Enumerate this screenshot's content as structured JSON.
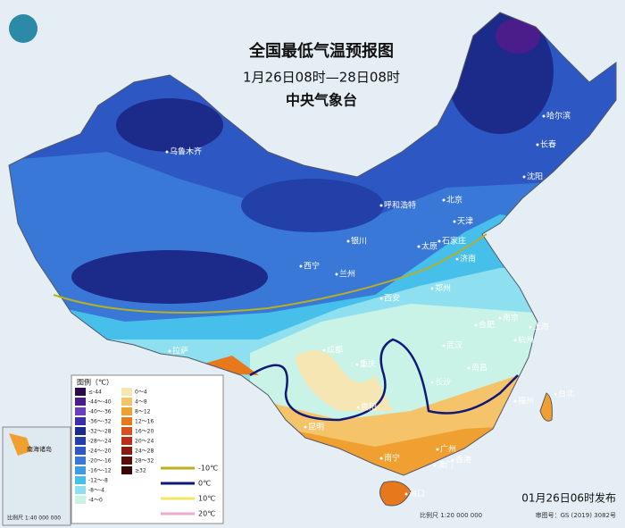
{
  "header": {
    "title": "全国最低气温预报图",
    "subtitle": "1月26日08时—28日08时",
    "agency": "中央气象台"
  },
  "cities": [
    "乌鲁木齐",
    "哈尔滨",
    "长春",
    "沈阳",
    "呼和浩特",
    "北京",
    "天津",
    "银川",
    "石家庄",
    "太原",
    "济南",
    "西宁",
    "兰州",
    "西安",
    "郑州",
    "拉萨",
    "成都",
    "重庆",
    "武汉",
    "合肥",
    "南京",
    "上海",
    "杭州",
    "南昌",
    "长沙",
    "贵阳",
    "福州",
    "台北",
    "昆明",
    "广州",
    "南宁",
    "澳门",
    "香港",
    "海口"
  ],
  "legend": {
    "title": "图例（℃）",
    "items": [
      {
        "label": "≤-44",
        "color": "#2a0a4a"
      },
      {
        "label": "-44～-40",
        "color": "#4b1d8a"
      },
      {
        "label": "-40～-36",
        "color": "#6a3fc0"
      },
      {
        "label": "-36～-32",
        "color": "#3b2fa8"
      },
      {
        "label": "-32～-28",
        "color": "#1c2a8a"
      },
      {
        "label": "-28～-24",
        "color": "#233fa8"
      },
      {
        "label": "-24～-20",
        "color": "#2d58c4"
      },
      {
        "label": "-20～-16",
        "color": "#3a78d8"
      },
      {
        "label": "-16～-12",
        "color": "#3d9be0"
      },
      {
        "label": "-12～-8",
        "color": "#46c0ea"
      },
      {
        "label": "-8～-4",
        "color": "#8ee0f0"
      },
      {
        "label": "-4～0",
        "color": "#c8f3e6"
      },
      {
        "label": "0～4",
        "color": "#f5e6b4"
      },
      {
        "label": "4～8",
        "color": "#f5c46a"
      },
      {
        "label": "8～12",
        "color": "#f0a030"
      },
      {
        "label": "12～16",
        "color": "#e8781c"
      },
      {
        "label": "16～20",
        "color": "#d8501a"
      },
      {
        "label": "20～24",
        "color": "#b8301a"
      },
      {
        "label": "24～28",
        "color": "#8a1a14"
      },
      {
        "label": "28～32",
        "color": "#5a0e0a"
      },
      {
        "label": "≥32",
        "color": "#3a0606"
      }
    ],
    "isolines": [
      {
        "label": "-10℃",
        "color": "#b8b020"
      },
      {
        "label": "0℃",
        "color": "#101878"
      },
      {
        "label": "10℃",
        "color": "#f0e860"
      },
      {
        "label": "20℃",
        "color": "#f0a8d0"
      }
    ]
  },
  "footer": {
    "issued": "01月26日06时发布",
    "scale": "比例尺 1:20 000 000",
    "approval": "审图号：GS (2019) 3082号"
  },
  "inset": {
    "title": "南海诸岛",
    "scale": "比例尺 1:40 000 000"
  }
}
